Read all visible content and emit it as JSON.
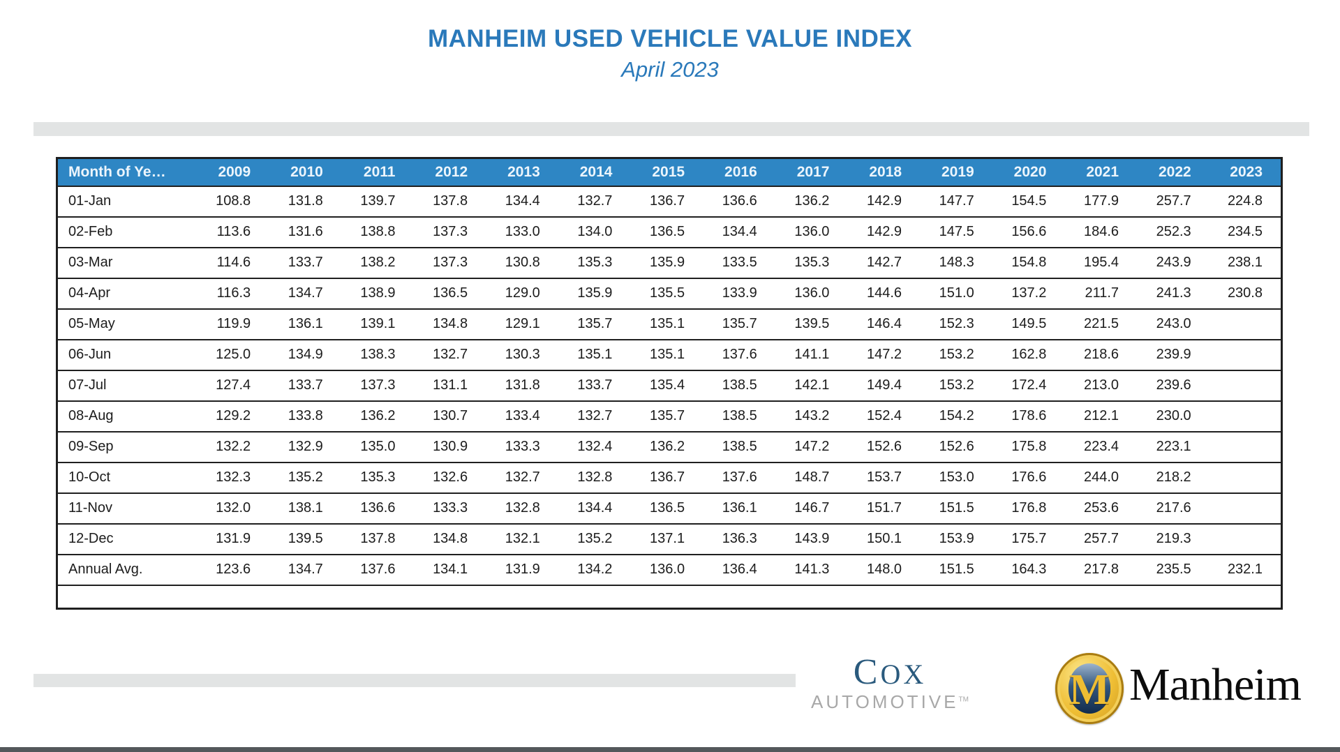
{
  "page": {
    "title": "MANHEIM USED VEHICLE VALUE INDEX",
    "subtitle": "April 2023"
  },
  "table": {
    "first_column_header": "Month of Ye…"
  },
  "chart_data": {
    "type": "table",
    "title": "MANHEIM USED VEHICLE VALUE INDEX",
    "subtitle": "April 2023",
    "columns": [
      "2009",
      "2010",
      "2011",
      "2012",
      "2013",
      "2014",
      "2015",
      "2016",
      "2017",
      "2018",
      "2019",
      "2020",
      "2021",
      "2022",
      "2023"
    ],
    "rows": [
      {
        "label": "01-Jan",
        "values": [
          108.8,
          131.8,
          139.7,
          137.8,
          134.4,
          132.7,
          136.7,
          136.6,
          136.2,
          142.9,
          147.7,
          154.5,
          177.9,
          257.7,
          224.8
        ]
      },
      {
        "label": "02-Feb",
        "values": [
          113.6,
          131.6,
          138.8,
          137.3,
          133.0,
          134.0,
          136.5,
          134.4,
          136.0,
          142.9,
          147.5,
          156.6,
          184.6,
          252.3,
          234.5
        ]
      },
      {
        "label": "03-Mar",
        "values": [
          114.6,
          133.7,
          138.2,
          137.3,
          130.8,
          135.3,
          135.9,
          133.5,
          135.3,
          142.7,
          148.3,
          154.8,
          195.4,
          243.9,
          238.1
        ]
      },
      {
        "label": "04-Apr",
        "values": [
          116.3,
          134.7,
          138.9,
          136.5,
          129.0,
          135.9,
          135.5,
          133.9,
          136.0,
          144.6,
          151.0,
          137.2,
          211.7,
          241.3,
          230.8
        ]
      },
      {
        "label": "05-May",
        "values": [
          119.9,
          136.1,
          139.1,
          134.8,
          129.1,
          135.7,
          135.1,
          135.7,
          139.5,
          146.4,
          152.3,
          149.5,
          221.5,
          243.0,
          null
        ]
      },
      {
        "label": "06-Jun",
        "values": [
          125.0,
          134.9,
          138.3,
          132.7,
          130.3,
          135.1,
          135.1,
          137.6,
          141.1,
          147.2,
          153.2,
          162.8,
          218.6,
          239.9,
          null
        ]
      },
      {
        "label": "07-Jul",
        "values": [
          127.4,
          133.7,
          137.3,
          131.1,
          131.8,
          133.7,
          135.4,
          138.5,
          142.1,
          149.4,
          153.2,
          172.4,
          213.0,
          239.6,
          null
        ]
      },
      {
        "label": "08-Aug",
        "values": [
          129.2,
          133.8,
          136.2,
          130.7,
          133.4,
          132.7,
          135.7,
          138.5,
          143.2,
          152.4,
          154.2,
          178.6,
          212.1,
          230.0,
          null
        ]
      },
      {
        "label": "09-Sep",
        "values": [
          132.2,
          132.9,
          135.0,
          130.9,
          133.3,
          132.4,
          136.2,
          138.5,
          147.2,
          152.6,
          152.6,
          175.8,
          223.4,
          223.1,
          null
        ]
      },
      {
        "label": "10-Oct",
        "values": [
          132.3,
          135.2,
          135.3,
          132.6,
          132.7,
          132.8,
          136.7,
          137.6,
          148.7,
          153.7,
          153.0,
          176.6,
          244.0,
          218.2,
          null
        ]
      },
      {
        "label": "11-Nov",
        "values": [
          132.0,
          138.1,
          136.6,
          133.3,
          132.8,
          134.4,
          136.5,
          136.1,
          146.7,
          151.7,
          151.5,
          176.8,
          253.6,
          217.6,
          null
        ]
      },
      {
        "label": "12-Dec",
        "values": [
          131.9,
          139.5,
          137.8,
          134.8,
          132.1,
          135.2,
          137.1,
          136.3,
          143.9,
          150.1,
          153.9,
          175.7,
          257.7,
          219.3,
          null
        ]
      },
      {
        "label": "Annual Avg.",
        "values": [
          123.6,
          134.7,
          137.6,
          134.1,
          131.9,
          134.2,
          136.0,
          136.4,
          141.3,
          148.0,
          151.5,
          164.3,
          217.8,
          235.5,
          232.1
        ]
      }
    ]
  },
  "footer": {
    "cox": {
      "word": "COX",
      "sub": "AUTOMOTIVE",
      "tm": "TM"
    },
    "manheim": {
      "monogram": "M",
      "wordmark": "Manheim"
    }
  },
  "colors": {
    "title_blue": "#2a79ba",
    "header_blue": "#2e86c4",
    "header_text": "#ecf5fc",
    "bar_gray": "#e2e4e4",
    "border_dark": "#1f1f1f",
    "text_dark": "#1c1c1c",
    "cox_navy": "#2a5a7d",
    "cox_gray": "#a8a8a8",
    "manheim_gold": "#eebd33",
    "manheim_navy": "#122c4d",
    "bottom_bar": "#54585b"
  }
}
